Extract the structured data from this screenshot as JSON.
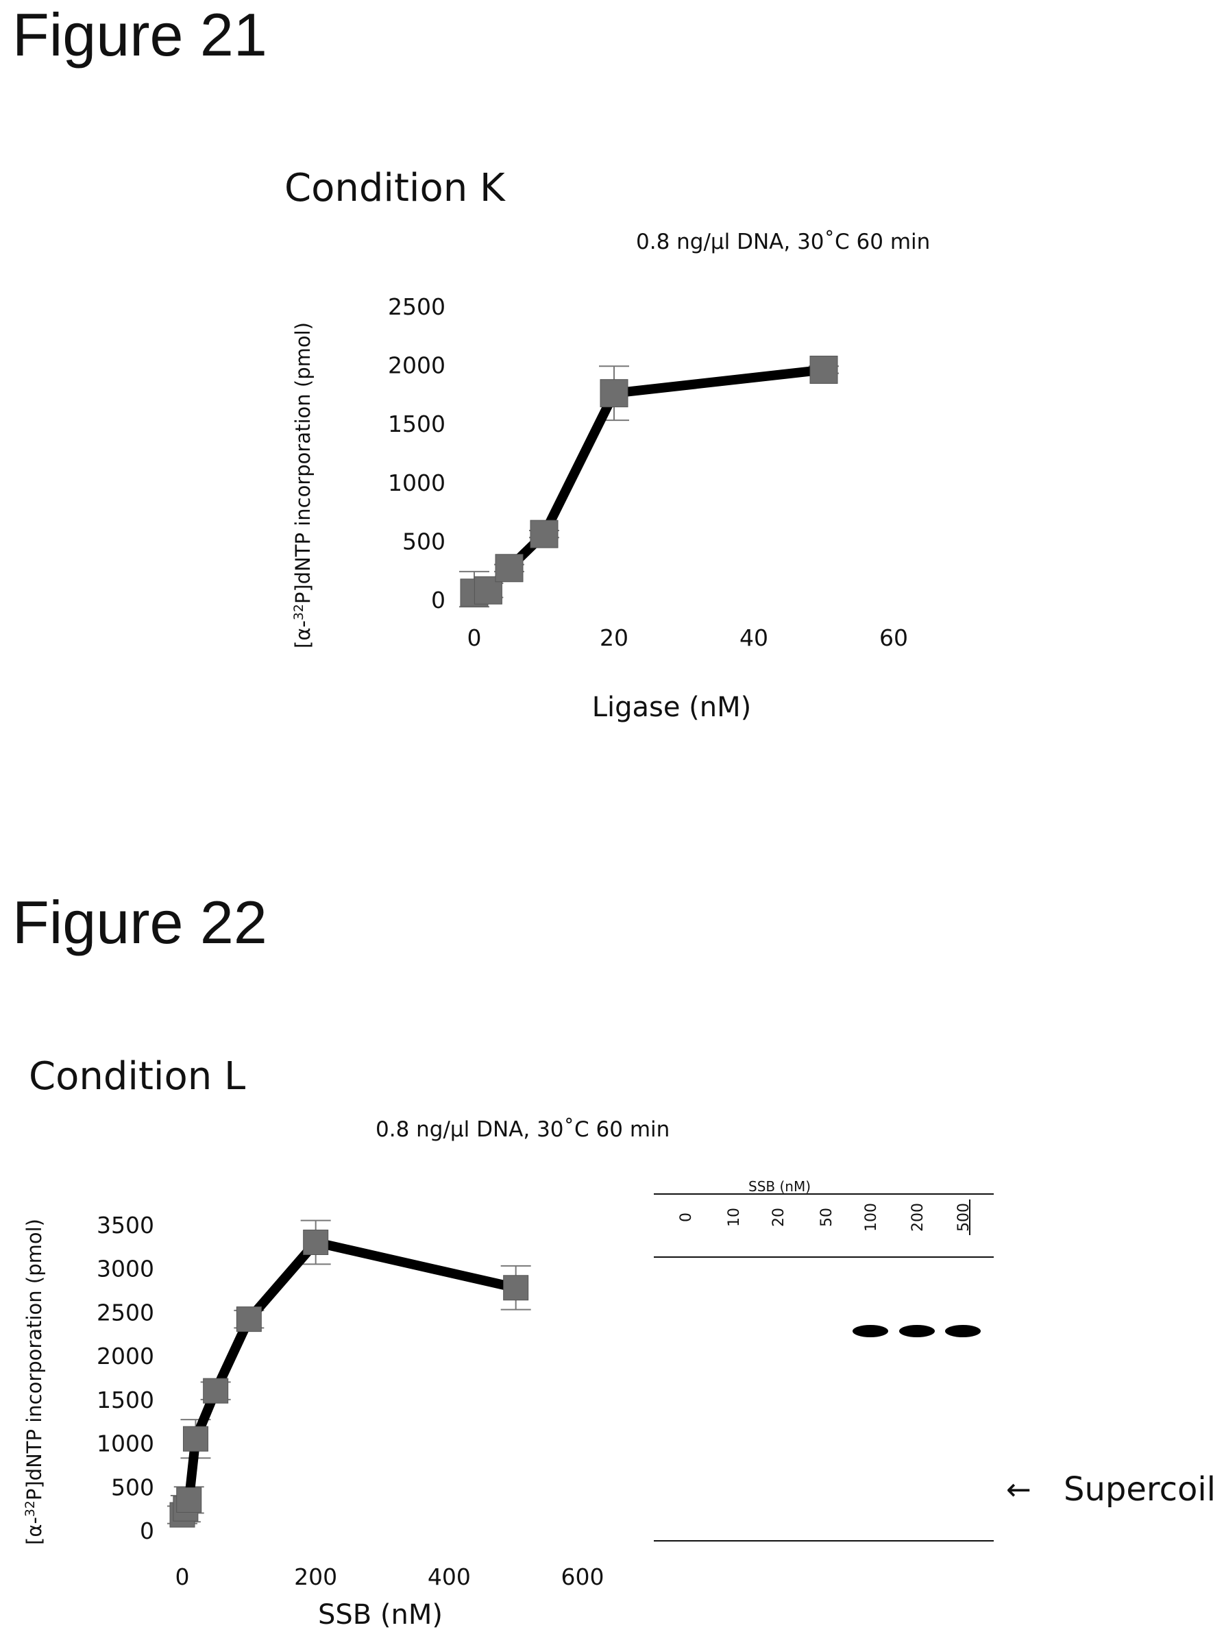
{
  "figures": [
    {
      "title": "Figure 21",
      "condition": "Condition K",
      "subtitle": "0.8 ng/µl DNA,  30˚C 60 min",
      "ylabel_parts": {
        "pre": "[α-",
        "sup": "32",
        "post": "P]dNTP incorporation (pmol)"
      }
    },
    {
      "title": "Figure 22",
      "condition": "Condition L",
      "subtitle": "0.8 ng/µl DNA,  30˚C 60 min",
      "ylabel_parts": {
        "pre": "[α-",
        "sup": "32",
        "post": "P]dNTP incorporation (pmol)"
      },
      "gel": {
        "header": "SSB (nM)",
        "lanes": [
          "0",
          "10",
          "20",
          "50",
          "100",
          "200",
          "500"
        ],
        "band_label": "Supercoil",
        "bands_present": [
          false,
          false,
          false,
          false,
          true,
          true,
          true
        ]
      }
    }
  ],
  "chart_data": [
    {
      "type": "line",
      "title": "",
      "xlabel": "Ligase (nM)",
      "ylabel": "[α-32P]dNTP incorporation (pmol)",
      "xlim": [
        0,
        60
      ],
      "ylim": [
        0,
        2500
      ],
      "xticks": [
        0,
        20,
        40,
        60
      ],
      "yticks": [
        0,
        500,
        1000,
        1500,
        2000,
        2500
      ],
      "grid": false,
      "marker": "square",
      "series": [
        {
          "x": [
            0,
            2,
            5,
            10,
            20,
            50
          ],
          "y": [
            60,
            80,
            270,
            560,
            1760,
            1960
          ],
          "error": [
            180,
            60,
            30,
            30,
            230,
            30
          ]
        }
      ]
    },
    {
      "type": "line",
      "title": "",
      "xlabel": "SSB (nM)",
      "ylabel": "[α-32P]dNTP incorporation (pmol)",
      "xlim": [
        0,
        600
      ],
      "ylim": [
        0,
        3500
      ],
      "xticks": [
        0,
        200,
        400,
        600
      ],
      "yticks": [
        0,
        500,
        1000,
        1500,
        2000,
        2500,
        3000,
        3500
      ],
      "grid": false,
      "marker": "square",
      "series": [
        {
          "x": [
            0,
            5,
            10,
            20,
            50,
            100,
            200,
            500
          ],
          "y": [
            180,
            250,
            350,
            1050,
            1600,
            2420,
            3300,
            2780
          ],
          "error": [
            100,
            150,
            150,
            220,
            100,
            100,
            250,
            250
          ]
        }
      ]
    }
  ]
}
